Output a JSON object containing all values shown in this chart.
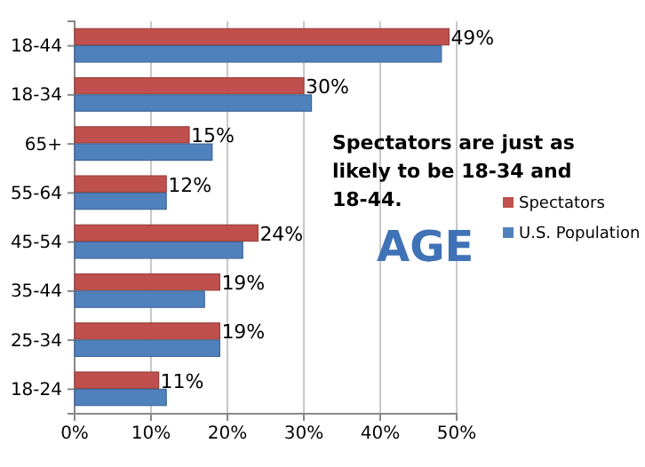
{
  "chart_data": {
    "type": "bar",
    "orientation": "horizontal",
    "categories": [
      "18-44",
      "18-34",
      "65+",
      "55-64",
      "45-54",
      "35-44",
      "25-34",
      "18-24"
    ],
    "series": [
      {
        "name": "Spectators",
        "color": "#c0504d",
        "values": [
          49,
          30,
          15,
          12,
          24,
          19,
          19,
          11
        ],
        "value_labels": [
          "49%",
          "30%",
          "15%",
          "12%",
          "24%",
          "19%",
          "19%",
          "11%"
        ]
      },
      {
        "name": "U.S. Population",
        "color": "#4f81bd",
        "values": [
          48,
          31,
          18,
          12,
          22,
          17,
          19,
          12
        ]
      }
    ],
    "xlim": [
      0,
      50
    ],
    "xticks": [
      {
        "value": 0,
        "label": "0%"
      },
      {
        "value": 10,
        "label": "10%"
      },
      {
        "value": 20,
        "label": "20%"
      },
      {
        "value": 30,
        "label": "30%"
      },
      {
        "value": 40,
        "label": "40%"
      },
      {
        "value": 50,
        "label": "50%"
      }
    ],
    "grid": "x",
    "legend": "right",
    "annotations": [
      "Spectators are just as likely to be 18-34 and 18-44.",
      "AGE"
    ]
  }
}
